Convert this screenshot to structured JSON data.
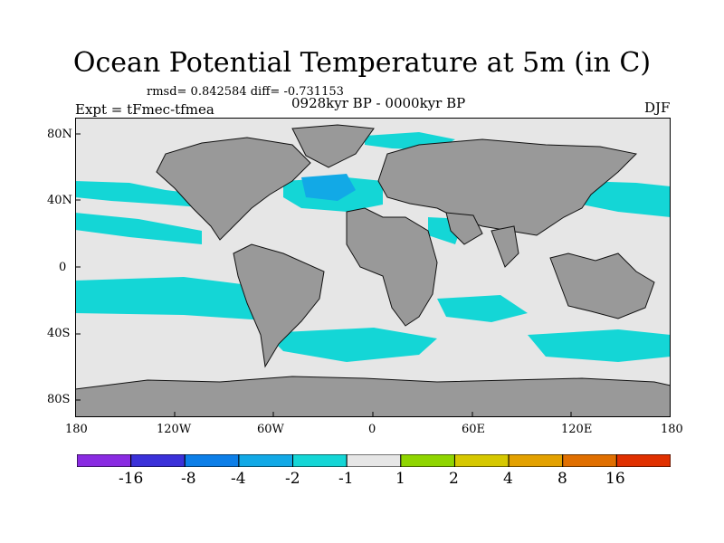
{
  "title": "Ocean Potential Temperature at 5m (in C)",
  "stats": "rmsd= 0.842584 diff= -0.731153",
  "experiment": "Expt = tFmec-tfmea",
  "period": "0928kyr BP - 0000kyr BP",
  "season": "DJF",
  "lat_labels": [
    "80N",
    "40N",
    "0",
    "40S",
    "80S"
  ],
  "lon_labels": [
    "180",
    "120W",
    "60W",
    "0",
    "60E",
    "120E",
    "180"
  ],
  "colorbar": {
    "colors": [
      "#8a2be2",
      "#3b31d9",
      "#0d7fe8",
      "#12a9e6",
      "#14d6d6",
      "#e6e6e6",
      "#8fd500",
      "#d6c800",
      "#e3a100",
      "#e06f00",
      "#e03000"
    ],
    "labels": [
      "-16",
      "-8",
      "-4",
      "-2",
      "-1",
      "1",
      "2",
      "4",
      "8",
      "16"
    ]
  },
  "map_colors": {
    "ocean": "#e6e6e6",
    "land": "#999999",
    "anomaly_cyan": "#14d6d6",
    "anomaly_blue": "#12a9e6"
  }
}
